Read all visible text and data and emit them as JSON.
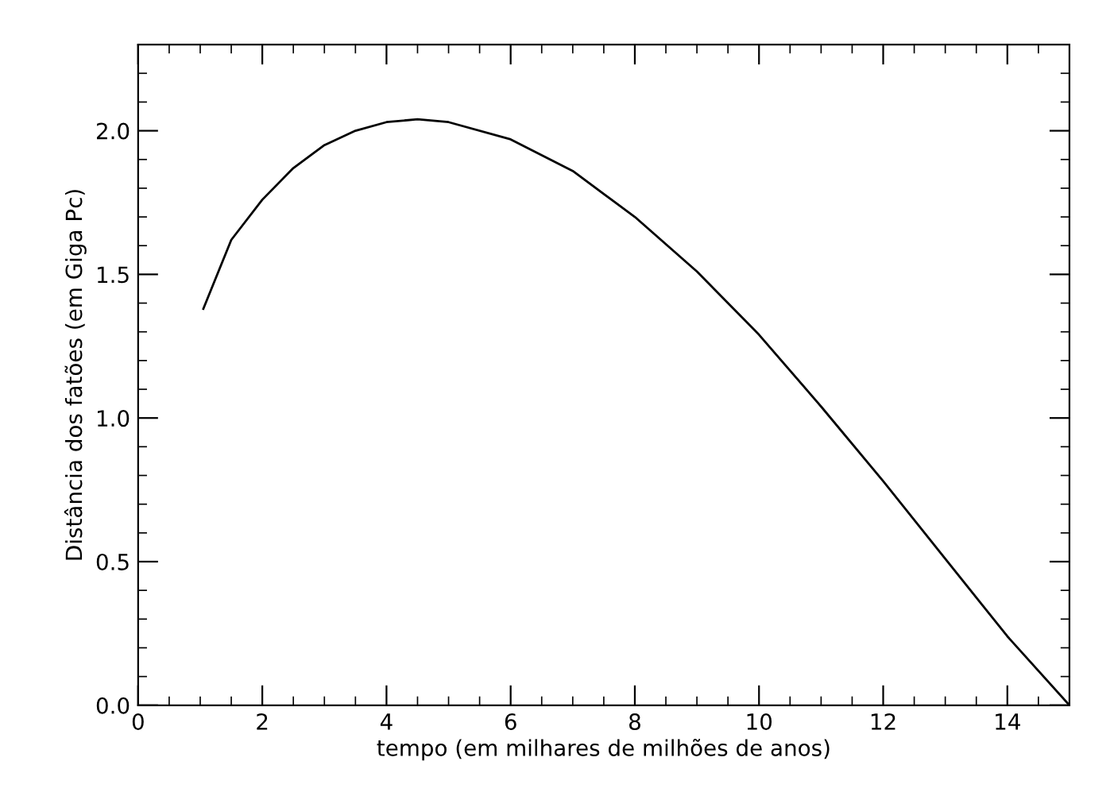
{
  "chart_data": {
    "type": "line",
    "xlabel": "tempo (em milhares de milhões de anos)",
    "ylabel": "Distância dos fatões (em Giga Pc)",
    "x": [
      1.05,
      1.5,
      2,
      2.5,
      3,
      3.5,
      4,
      4.5,
      5,
      6,
      7,
      8,
      9,
      10,
      11,
      12,
      13,
      14,
      15
    ],
    "series": [
      {
        "color": "#000000",
        "values": [
          1.38,
          1.62,
          1.76,
          1.87,
          1.95,
          2.0,
          2.03,
          2.04,
          2.03,
          1.97,
          1.86,
          1.7,
          1.51,
          1.29,
          1.04,
          0.78,
          0.51,
          0.24,
          0.0
        ]
      }
    ],
    "xlim": [
      0,
      15
    ],
    "xticks": [
      0,
      2,
      4,
      6,
      8,
      10,
      12,
      14
    ],
    "ylim": [
      0,
      2.3
    ],
    "yticks": [
      {
        "value": 0,
        "label": "0.0"
      },
      {
        "value": 0.5,
        "label": "0.5"
      },
      {
        "value": 1,
        "label": "1.0"
      },
      {
        "value": 1.5,
        "label": "1.5"
      },
      {
        "value": 2,
        "label": "2.0"
      }
    ],
    "grid": false,
    "marker": "none",
    "line_style": "solid"
  }
}
